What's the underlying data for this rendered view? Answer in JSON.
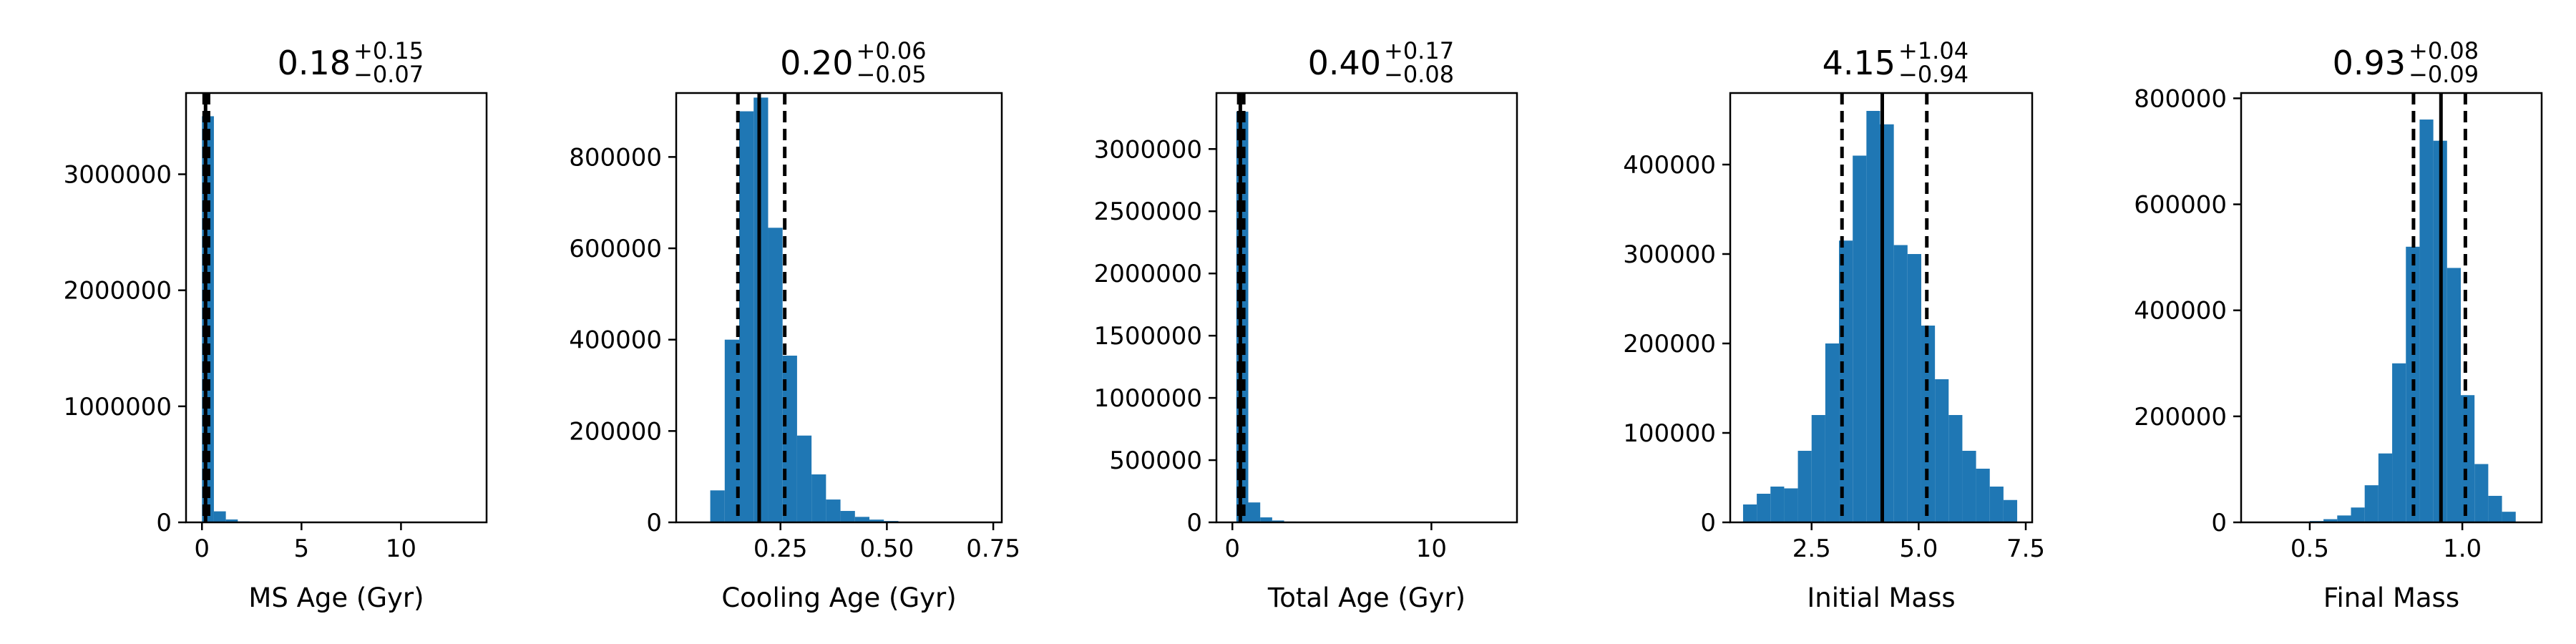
{
  "colors": {
    "bar": "#1f77b4",
    "line": "#000000",
    "frame": "#000000",
    "background": "#ffffff"
  },
  "chart_data": [
    {
      "type": "bar",
      "title": {
        "main": "0.18",
        "plus": "+0.15",
        "minus": "−0.07"
      },
      "xlabel": "MS Age (Gyr)",
      "ylabel": "",
      "xlim": [
        -0.8,
        14.3
      ],
      "ylim": [
        0,
        3700000
      ],
      "xticks": [
        0,
        5,
        10
      ],
      "xtick_labels": [
        "0",
        "5",
        "10"
      ],
      "yticks": [
        0,
        1000000,
        2000000,
        3000000
      ],
      "ytick_labels": [
        "0",
        "1000000",
        "2000000",
        "3000000"
      ],
      "bin_start": 0,
      "bin_width": 0.6,
      "values": [
        3500000,
        95000,
        25000,
        8000,
        3000,
        1500,
        800,
        400,
        200,
        100,
        50,
        30,
        20,
        10,
        5,
        3,
        2,
        1,
        1,
        1
      ],
      "median": 0.18,
      "lower": 0.11,
      "upper": 0.33,
      "grid": false,
      "legend": "none"
    },
    {
      "type": "bar",
      "title": {
        "main": "0.20",
        "plus": "+0.06",
        "minus": "−0.05"
      },
      "xlabel": "Cooling Age (Gyr)",
      "ylabel": "",
      "xlim": [
        0.005,
        0.77
      ],
      "ylim": [
        0,
        940000
      ],
      "xticks": [
        0.25,
        0.5,
        0.75
      ],
      "xtick_labels": [
        "0.25",
        "0.50",
        "0.75"
      ],
      "yticks": [
        0,
        200000,
        400000,
        600000,
        800000
      ],
      "ytick_labels": [
        "0",
        "200000",
        "400000",
        "600000",
        "800000"
      ],
      "bin_start": 0.085,
      "bin_width": 0.034,
      "values": [
        70000,
        400000,
        900000,
        930000,
        645000,
        365000,
        190000,
        105000,
        50000,
        25000,
        12000,
        6000,
        3000,
        1500,
        800,
        400,
        200,
        100,
        50,
        20
      ],
      "median": 0.2,
      "lower": 0.15,
      "upper": 0.26,
      "grid": false,
      "legend": "none"
    },
    {
      "type": "bar",
      "title": {
        "main": "0.40",
        "plus": "+0.17",
        "minus": "−0.08"
      },
      "xlabel": "Total Age (Gyr)",
      "ylabel": "",
      "xlim": [
        -0.8,
        14.3
      ],
      "ylim": [
        0,
        3450000
      ],
      "xticks": [
        0,
        10
      ],
      "xtick_labels": [
        "0",
        "10"
      ],
      "yticks": [
        0,
        500000,
        1000000,
        1500000,
        2000000,
        2500000,
        3000000
      ],
      "ytick_labels": [
        "0",
        "500000",
        "1000000",
        "1500000",
        "2000000",
        "2500000",
        "3000000"
      ],
      "bin_start": 0.2,
      "bin_width": 0.6,
      "values": [
        3300000,
        160000,
        40000,
        15000,
        6000,
        2500,
        1200,
        600,
        300,
        150,
        80,
        40,
        20,
        10,
        5,
        3,
        2,
        1,
        1,
        1
      ],
      "median": 0.4,
      "lower": 0.32,
      "upper": 0.57,
      "grid": false,
      "legend": "none"
    },
    {
      "type": "bar",
      "title": {
        "main": "4.15",
        "plus": "+1.04",
        "minus": "−0.94"
      },
      "xlabel": "Initial Mass",
      "ylabel": "",
      "xlim": [
        0.6,
        7.65
      ],
      "ylim": [
        0,
        480000
      ],
      "xticks": [
        2.5,
        5.0,
        7.5
      ],
      "xtick_labels": [
        "2.5",
        "5.0",
        "7.5"
      ],
      "yticks": [
        0,
        100000,
        200000,
        300000,
        400000
      ],
      "ytick_labels": [
        "0",
        "100000",
        "200000",
        "300000",
        "400000"
      ],
      "bin_start": 0.9,
      "bin_width": 0.32,
      "values": [
        20000,
        32000,
        40000,
        38000,
        80000,
        120000,
        200000,
        315000,
        410000,
        460000,
        445000,
        310000,
        300000,
        220000,
        160000,
        120000,
        80000,
        60000,
        40000,
        25000
      ],
      "median": 4.15,
      "lower": 3.21,
      "upper": 5.19,
      "grid": false,
      "legend": "none"
    },
    {
      "type": "bar",
      "title": {
        "main": "0.93",
        "plus": "+0.08",
        "minus": "−0.09"
      },
      "xlabel": "Final Mass",
      "ylabel": "",
      "xlim": [
        0.275,
        1.26
      ],
      "ylim": [
        0,
        810000
      ],
      "xticks": [
        0.5,
        1.0
      ],
      "xtick_labels": [
        "0.5",
        "1.0"
      ],
      "yticks": [
        0,
        200000,
        400000,
        600000,
        800000
      ],
      "ytick_labels": [
        "0",
        "200000",
        "400000",
        "600000",
        "800000"
      ],
      "bin_start": 0.32,
      "bin_width": 0.045,
      "values": [
        100,
        200,
        500,
        1000,
        2500,
        6000,
        13000,
        28000,
        70000,
        130000,
        300000,
        520000,
        760000,
        720000,
        480000,
        240000,
        110000,
        50000,
        20000,
        0
      ],
      "median": 0.93,
      "lower": 0.84,
      "upper": 1.01,
      "grid": false,
      "legend": "none"
    }
  ]
}
